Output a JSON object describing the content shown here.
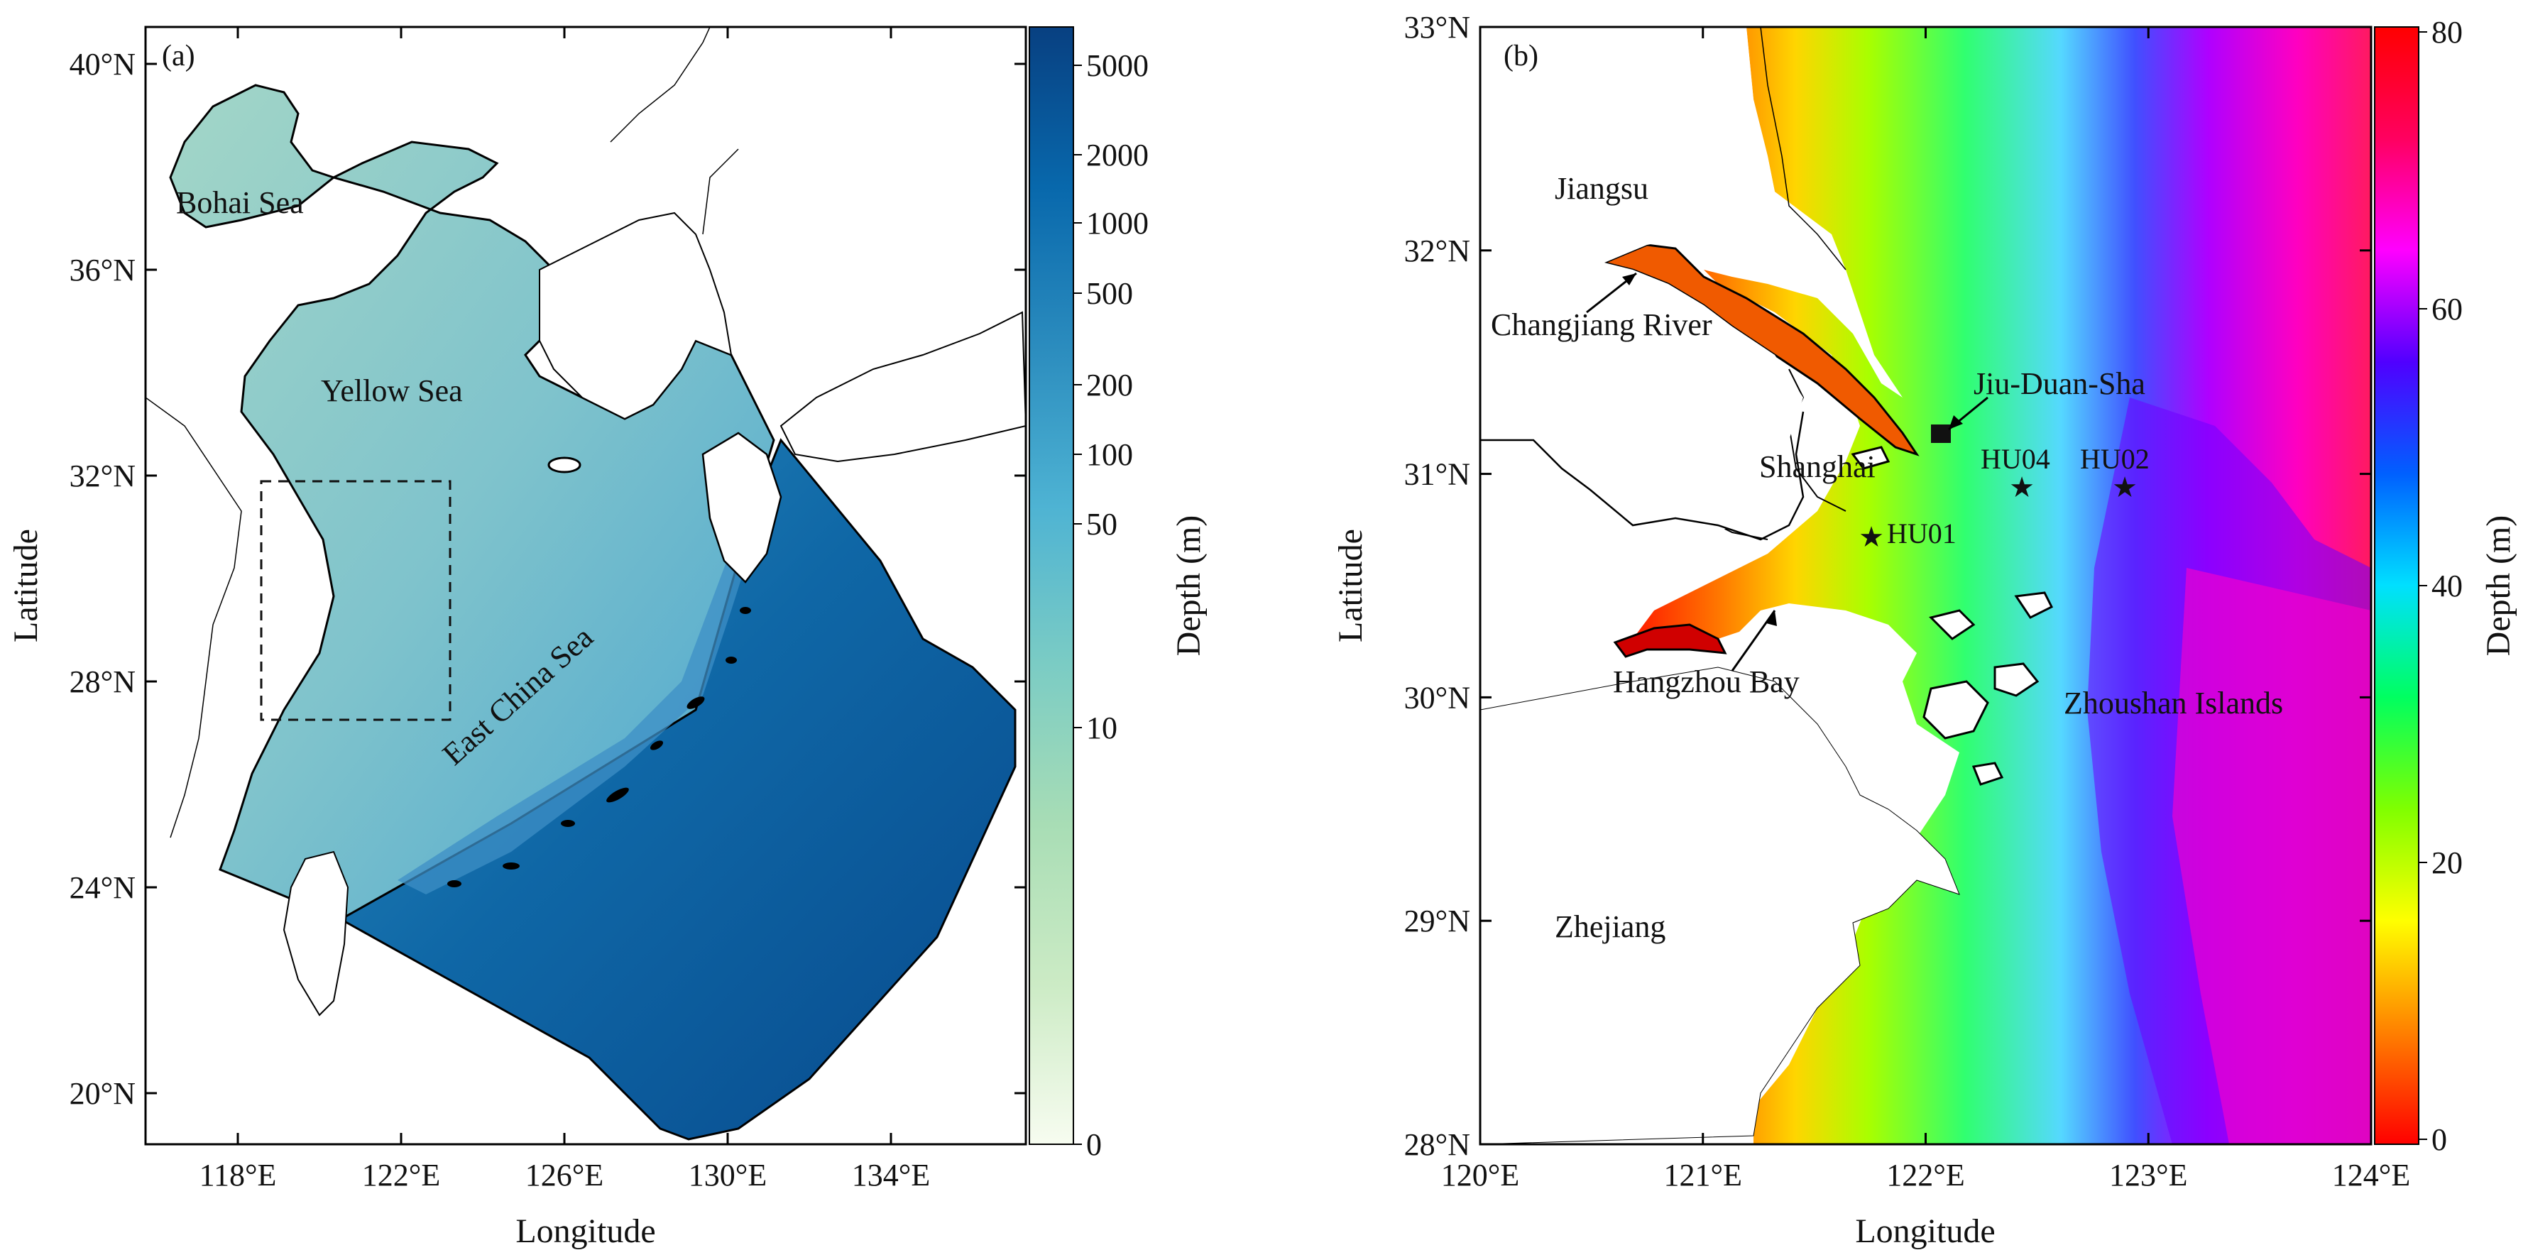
{
  "panels": [
    {
      "id": "a",
      "panel_label": "(a)",
      "x_label": "Longitude",
      "y_label": "Latitude",
      "x_ticks": [
        "118°E",
        "122°E",
        "126°E",
        "130°E",
        "134°E"
      ],
      "y_ticks": [
        "20°N",
        "24°N",
        "28°N",
        "32°N",
        "36°N",
        "40°N"
      ],
      "place_labels": [
        "Bohai Sea",
        "Yellow Sea",
        "East China Sea"
      ],
      "colorbar": {
        "title": "Depth (m)",
        "scale": "log",
        "ticks": [
          "5000",
          "2000",
          "1000",
          "500",
          "200",
          "100",
          "50",
          "10",
          "0"
        ],
        "colors": [
          "#f7fcf0",
          "#ccebc5",
          "#a8ddb5",
          "#7bccc4",
          "#4eb3d3",
          "#2b8cbe",
          "#0868ac",
          "#084081"
        ]
      },
      "inset_box_note": "dashed box marks region of panel (b)"
    },
    {
      "id": "b",
      "panel_label": "(b)",
      "x_label": "Longitude",
      "y_label": "Latitude",
      "x_ticks": [
        "120°E",
        "121°E",
        "122°E",
        "123°E",
        "124°E"
      ],
      "y_ticks": [
        "28°N",
        "29°N",
        "30°N",
        "31°N",
        "32°N",
        "33°N"
      ],
      "place_labels": [
        "Jiangsu",
        "Changjiang River",
        "Jiu-Duan-Sha",
        "Shanghai",
        "Hangzhou Bay",
        "Zhoushan Islands",
        "Zhejiang"
      ],
      "stations": [
        "HU01",
        "HU02",
        "HU04"
      ],
      "colorbar": {
        "title": "Depth (m)",
        "scale": "linear",
        "range": [
          0,
          80
        ],
        "ticks": [
          "0",
          "20",
          "40",
          "60",
          "80"
        ],
        "colors": [
          "#ff0000",
          "#ff8000",
          "#ffff00",
          "#80ff00",
          "#00ff60",
          "#00e0ff",
          "#0060ff",
          "#5000ff",
          "#ff00ff",
          "#ff0060",
          "#ff0000"
        ]
      }
    }
  ]
}
